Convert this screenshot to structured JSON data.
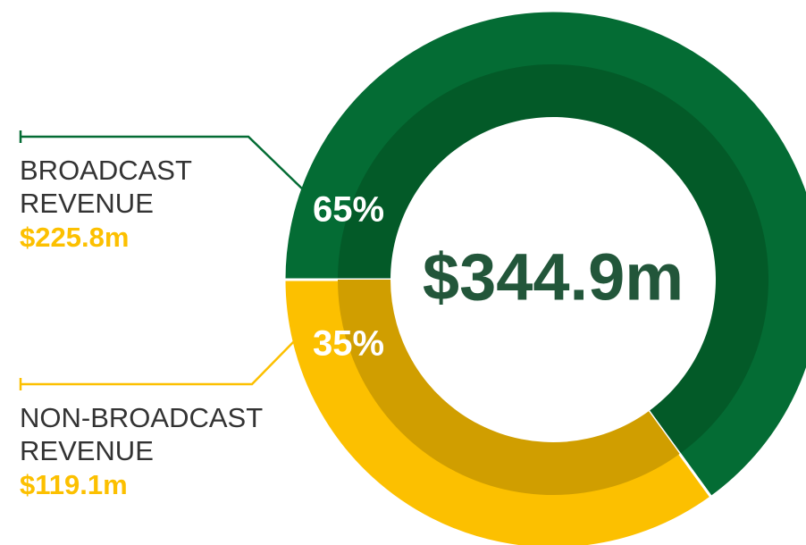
{
  "chart_data": {
    "type": "donut",
    "categories": [
      [
        "BROADCAST",
        "REVENUE"
      ],
      [
        "NON-BROADCAST",
        "REVENUE"
      ]
    ],
    "values": [
      65,
      35
    ],
    "value_labels": [
      "65%",
      "35%"
    ],
    "amounts": [
      "$225.8m",
      "$119.1m"
    ],
    "center_label": "$344.9m",
    "colors": [
      "#046c34",
      "#fcc000"
    ],
    "inner_colors": [
      "#035a28",
      "#d09e00"
    ]
  }
}
